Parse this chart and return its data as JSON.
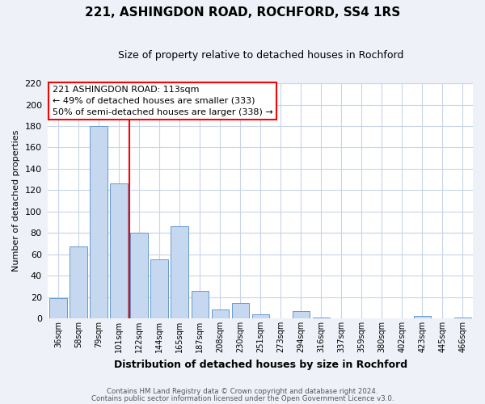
{
  "title": "221, ASHINGDON ROAD, ROCHFORD, SS4 1RS",
  "subtitle": "Size of property relative to detached houses in Rochford",
  "xlabel": "Distribution of detached houses by size in Rochford",
  "ylabel": "Number of detached properties",
  "categories": [
    "36sqm",
    "58sqm",
    "79sqm",
    "101sqm",
    "122sqm",
    "144sqm",
    "165sqm",
    "187sqm",
    "208sqm",
    "230sqm",
    "251sqm",
    "273sqm",
    "294sqm",
    "316sqm",
    "337sqm",
    "359sqm",
    "380sqm",
    "402sqm",
    "423sqm",
    "445sqm",
    "466sqm"
  ],
  "values": [
    19,
    67,
    180,
    126,
    80,
    55,
    86,
    26,
    8,
    14,
    4,
    0,
    7,
    1,
    0,
    0,
    0,
    0,
    2,
    0,
    1
  ],
  "bar_color": "#c5d8f0",
  "bar_edge_color": "#6699cc",
  "ylim": [
    0,
    220
  ],
  "yticks": [
    0,
    20,
    40,
    60,
    80,
    100,
    120,
    140,
    160,
    180,
    200,
    220
  ],
  "annotation_title": "221 ASHINGDON ROAD: 113sqm",
  "annotation_line1": "← 49% of detached houses are smaller (333)",
  "annotation_line2": "50% of semi-detached houses are larger (338) →",
  "red_line_index": 3,
  "footer_line1": "Contains HM Land Registry data © Crown copyright and database right 2024.",
  "footer_line2": "Contains public sector information licensed under the Open Government Licence v3.0.",
  "bg_color": "#eef2f8",
  "plot_bg_color": "#ffffff",
  "grid_color": "#c8d4e8"
}
